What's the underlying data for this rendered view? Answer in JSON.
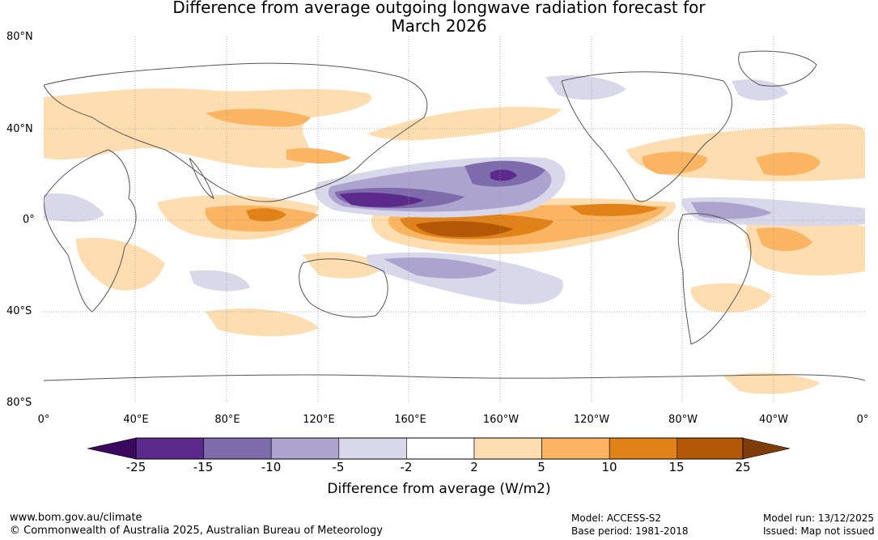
{
  "title_line1": "Difference from average outgoing longwave radiation forecast for",
  "title_line2": "March 2026",
  "latitude_labels": [
    "80°N",
    "40°N",
    "0°",
    "40°S",
    "80°S"
  ],
  "longitude_labels": [
    "0°",
    "40°E",
    "80°E",
    "120°E",
    "160°E",
    "160°W",
    "120°W",
    "80°W",
    "40°W",
    "0°"
  ],
  "colorbar": {
    "ticks": [
      "-25",
      "-15",
      "-10",
      "-5",
      "-2",
      "2",
      "5",
      "10",
      "15",
      "25"
    ],
    "colors": [
      "#3b0a5e",
      "#5b2a8c",
      "#7e6bab",
      "#aca4cf",
      "#d9d8ea",
      "#ffffff",
      "#fedeb0",
      "#fbb562",
      "#e08217",
      "#b35806",
      "#7f3b08"
    ],
    "title": "Difference from average (W/m2)"
  },
  "footer": {
    "website": "www.bom.gov.au/climate",
    "copyright": "© Commonwealth of Australia 2025, Australian Bureau of Meteorology",
    "model": "Model: ACCESS-S2",
    "base_period": "Base period: 1981-2018",
    "model_run": "Model run: 13/12/2025",
    "issued": "Issued: Map not issued"
  }
}
